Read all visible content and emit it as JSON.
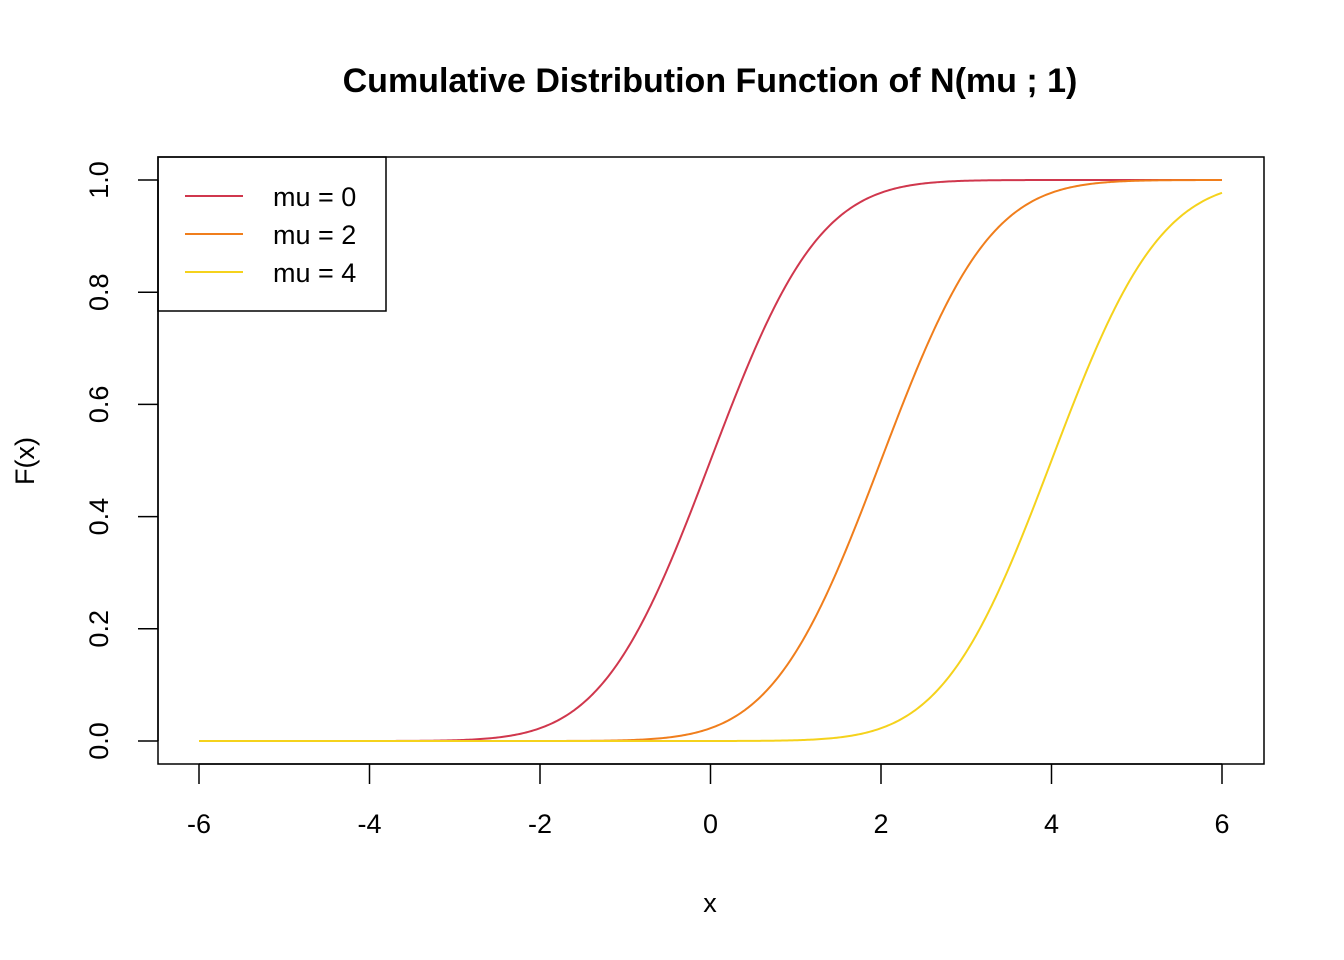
{
  "chart_data": {
    "type": "line",
    "title": "Cumulative Distribution Function of N(mu ; 1)",
    "xlabel": "x",
    "ylabel": "F(x)",
    "xlim": [
      -6,
      6
    ],
    "ylim": [
      0,
      1
    ],
    "x_ticks": [
      "-6",
      "-4",
      "-2",
      "0",
      "2",
      "4",
      "6"
    ],
    "y_ticks": [
      "0.0",
      "0.2",
      "0.4",
      "0.6",
      "0.8",
      "1.0"
    ],
    "grid": false,
    "legend_position": "top-left",
    "series": [
      {
        "name": "mu = 0",
        "color": "#D0374D",
        "x": [
          -6,
          -5,
          -4,
          -3,
          -2.5,
          -2,
          -1.5,
          -1,
          -0.5,
          0,
          0.5,
          1,
          1.5,
          2,
          2.5,
          3,
          4,
          5,
          6
        ],
        "values": [
          0.0,
          0.0,
          0.0,
          0.0013,
          0.0062,
          0.0228,
          0.0668,
          0.1587,
          0.3085,
          0.5,
          0.6915,
          0.8413,
          0.9332,
          0.9772,
          0.9938,
          0.9987,
          1.0,
          1.0,
          1.0
        ]
      },
      {
        "name": "mu = 2",
        "color": "#F07E1C",
        "x": [
          -6,
          -4,
          -2,
          -1,
          -0.5,
          0,
          0.5,
          1,
          1.5,
          2,
          2.5,
          3,
          3.5,
          4,
          4.5,
          5,
          6
        ],
        "values": [
          0.0,
          0.0,
          0.0,
          0.0013,
          0.0062,
          0.0228,
          0.0668,
          0.1587,
          0.3085,
          0.5,
          0.6915,
          0.8413,
          0.9332,
          0.9772,
          0.9938,
          0.9987,
          1.0
        ]
      },
      {
        "name": "mu = 4",
        "color": "#F5D21C",
        "x": [
          -6,
          -4,
          -2,
          0,
          1,
          1.5,
          2,
          2.5,
          3,
          3.5,
          4,
          4.5,
          5,
          5.5,
          6
        ],
        "values": [
          0.0,
          0.0,
          0.0,
          0.0,
          0.0013,
          0.0062,
          0.0228,
          0.0668,
          0.1587,
          0.3085,
          0.5,
          0.6915,
          0.8413,
          0.9332,
          0.9772
        ]
      }
    ]
  }
}
